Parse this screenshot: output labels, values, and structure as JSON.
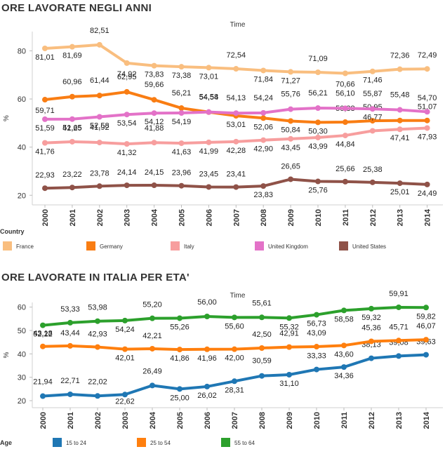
{
  "chart_data": [
    {
      "type": "line",
      "title": "ORE LAVORATE NEGLI ANNI",
      "subtitle": "Time",
      "ylabel": "%",
      "ylim": [
        16,
        88
      ],
      "yticks": [
        20,
        40,
        60,
        80
      ],
      "grid": false,
      "legend_title": "Country",
      "legend_position": "bottom",
      "categories": [
        "2000",
        "2001",
        "2002",
        "2003",
        "2004",
        "2005",
        "2006",
        "2007",
        "2008",
        "2009",
        "2010",
        "2011",
        "2012",
        "2013",
        "2014"
      ],
      "series": [
        {
          "name": "France",
          "color": "#f9be7f",
          "values": [
            81.01,
            81.69,
            82.51,
            74.92,
            73.83,
            73.38,
            73.01,
            72.54,
            71.84,
            71.27,
            71.09,
            70.66,
            71.46,
            72.36,
            72.49
          ],
          "labels": [
            "81,01",
            "81,69",
            "82,51",
            "74,92",
            "73,83",
            "73,38",
            "73,01",
            "72,54",
            "71,84",
            "71,27",
            "71,09",
            "70,66",
            "71,46",
            "72,36",
            "72,49"
          ]
        },
        {
          "name": "Germany",
          "color": "#f97d13",
          "values": [
            59.71,
            60.96,
            61.44,
            62.95,
            59.66,
            56.21,
            54.54,
            53.01,
            52.06,
            50.84,
            50.3,
            50.38,
            50.95,
            51.07,
            51.07
          ],
          "labels": [
            "59,71",
            "60,96",
            "61,44",
            "62,95",
            "59,66",
            "56,21",
            "54,54",
            "53,01",
            "52,06",
            "50,84",
            "50,30",
            "50,38",
            "50,95",
            "",
            "51,07"
          ]
        },
        {
          "name": "Italy",
          "color": "#f79e9e",
          "values": [
            41.76,
            42.25,
            41.92,
            41.32,
            41.88,
            41.63,
            41.99,
            42.28,
            42.9,
            43.45,
            43.99,
            44.84,
            46.77,
            47.41,
            47.93
          ],
          "labels": [
            "41,76",
            "42,25",
            "41,92",
            "41,32",
            "41,88",
            "41,63",
            "41,99",
            "42,28",
            "42,90",
            "43,45",
            "43,99",
            "44,84",
            "46,77",
            "47,41",
            "47,93"
          ]
        },
        {
          "name": "United Kingdom",
          "color": "#e372c8",
          "values": [
            51.59,
            51.65,
            52.58,
            53.54,
            54.12,
            54.19,
            54.58,
            54.13,
            54.24,
            55.76,
            56.21,
            56.1,
            55.87,
            55.48,
            54.7
          ],
          "labels": [
            "51,59",
            "51,65",
            "52,58",
            "53,54",
            "54,12",
            "54,19",
            "54,58",
            "54,13",
            "54,24",
            "55,76",
            "56,21",
            "56,10",
            "55,87",
            "55,48",
            "54,70"
          ]
        },
        {
          "name": "United States",
          "color": "#8f5248",
          "values": [
            22.93,
            23.22,
            23.78,
            24.14,
            24.15,
            23.96,
            23.45,
            23.41,
            23.83,
            26.65,
            25.76,
            25.66,
            25.38,
            25.01,
            24.49
          ],
          "labels": [
            "22,93",
            "23,22",
            "23,78",
            "24,14",
            "24,15",
            "23,96",
            "23,45",
            "23,41",
            "23,83",
            "26,65",
            "25,76",
            "25,66",
            "25,38",
            "25,01",
            "24,49"
          ]
        }
      ]
    },
    {
      "type": "line",
      "title": "ORE LAVORATE IN ITALIA PER ETA'",
      "subtitle": "Time",
      "ylabel": "%",
      "ylim": [
        17,
        62
      ],
      "yticks": [
        20,
        30,
        40,
        50,
        60
      ],
      "grid": false,
      "legend_title": "Age",
      "legend_position": "bottom",
      "categories": [
        "2000",
        "2001",
        "2002",
        "2003",
        "2004",
        "2005",
        "2006",
        "2007",
        "2008",
        "2009",
        "2010",
        "2011",
        "2012",
        "2013",
        "2014"
      ],
      "series": [
        {
          "name": "15 to 24",
          "color": "#1f77b4",
          "values": [
            21.94,
            22.71,
            22.02,
            22.62,
            26.49,
            25.0,
            26.02,
            28.31,
            30.59,
            31.1,
            33.33,
            34.36,
            38.13,
            39.08,
            39.63
          ],
          "labels": [
            "21,94",
            "22,71",
            "22,02",
            "22,62",
            "26,49",
            "25,00",
            "26,02",
            "28,31",
            "30,59",
            "31,10",
            "33,33",
            "34,36",
            "38,13",
            "39,08",
            "39,63"
          ]
        },
        {
          "name": "25 to 54",
          "color": "#ff7f0e",
          "values": [
            43.18,
            43.44,
            42.93,
            42.01,
            42.21,
            41.86,
            41.96,
            42.0,
            42.5,
            42.91,
            43.09,
            43.6,
            45.36,
            45.71,
            46.07
          ],
          "labels": [
            "43,18",
            "43,44",
            "42,93",
            "42,01",
            "42,21",
            "41,86",
            "41,96",
            "42,00",
            "42,50",
            "42,91",
            "43,09",
            "43,60",
            "45,36",
            "45,71",
            "46,07"
          ]
        },
        {
          "name": "55 to 64",
          "color": "#2ca02c",
          "values": [
            52.22,
            53.33,
            53.98,
            54.24,
            55.2,
            55.26,
            56.0,
            55.6,
            55.61,
            55.32,
            56.73,
            58.58,
            59.32,
            59.91,
            59.82
          ],
          "labels": [
            "52,22",
            "53,33",
            "53,98",
            "54,24",
            "55,20",
            "55,26",
            "56,00",
            "55,60",
            "55,61",
            "55,32",
            "56,73",
            "58,58",
            "59,32",
            "59,91",
            "59,82"
          ]
        }
      ]
    }
  ]
}
